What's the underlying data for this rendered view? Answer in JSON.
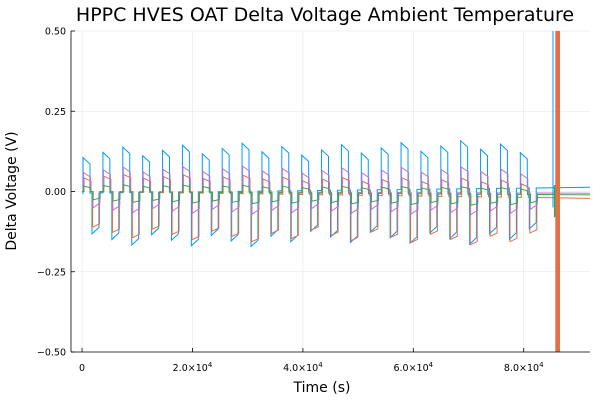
{
  "chart_data": {
    "type": "line",
    "title": "HPPC HVES OAT Delta Voltage Ambient Temperature",
    "xlabel": "Time (s)",
    "ylabel": "Delta Voltage (V)",
    "xlim": [
      -2000,
      92000
    ],
    "ylim": [
      -0.5,
      0.5
    ],
    "grid": true,
    "legend": "none",
    "x_ticks": [
      {
        "value": 0,
        "mantissa": "0",
        "exponent": ""
      },
      {
        "value": 20000,
        "mantissa": "2.0×10",
        "exponent": "4"
      },
      {
        "value": 40000,
        "mantissa": "4.0×10",
        "exponent": "4"
      },
      {
        "value": 60000,
        "mantissa": "6.0×10",
        "exponent": "4"
      },
      {
        "value": 80000,
        "mantissa": "8.0×10",
        "exponent": "4"
      }
    ],
    "y_ticks": [
      {
        "value": 0.5,
        "label": "0.50"
      },
      {
        "value": 0.25,
        "label": "0.25"
      },
      {
        "value": 0,
        "label": "0.00"
      },
      {
        "value": -0.25,
        "label": "−0.25"
      },
      {
        "value": -0.5,
        "label": "−0.50"
      }
    ],
    "pulse_series": [
      {
        "color": "#009AFA",
        "amp_up": 0.13,
        "amp_down": -0.15,
        "offset_up": 0.0,
        "offset_down": 0.0,
        "decay": 0.02
      },
      {
        "color": "#E26F46",
        "amp_up": 0.05,
        "amp_down": -0.13,
        "offset_up": 0.5,
        "offset_down": 0.3,
        "decay": 0.01
      },
      {
        "color": "#C271D2",
        "amp_up": 0.07,
        "amp_down": -0.06,
        "offset_up": 0.25,
        "offset_down": 0.5,
        "decay": 0.015
      },
      {
        "color": "#3EA44E",
        "amp_up": 0.02,
        "amp_down": -0.03,
        "offset_up": 0.1,
        "offset_down": 0.6,
        "decay": 0.005
      }
    ],
    "pulse_period": 3600,
    "pulse_start": 0,
    "pulse_end": 86000,
    "end_spike_series": [
      {
        "color": "#E26F46",
        "x": 86300,
        "ymin": -0.5,
        "ymax": 0.5,
        "width": 3
      },
      {
        "color": "#E26F46",
        "x": 85900,
        "ymin": -0.5,
        "ymax": 0.5,
        "width": 2
      },
      {
        "color": "#009AFA",
        "x": 85300,
        "ymin": -0.05,
        "ymax": 0.5,
        "width": 1
      },
      {
        "color": "#3EA44E",
        "x": 85600,
        "ymin": -0.08,
        "ymax": 0.02,
        "width": 1.5
      }
    ],
    "baseline_trends": [
      {
        "color": "#3EA44E",
        "y_start": -0.005,
        "y_end": 0.012
      },
      {
        "color": "#E26F46",
        "y_start": 0.0,
        "y_end": -0.02
      },
      {
        "color": "#C271D2",
        "y_start": 0.0,
        "y_end": -0.005
      },
      {
        "color": "#009AFA",
        "y_start": 0.0,
        "y_end": -0.01
      }
    ]
  }
}
